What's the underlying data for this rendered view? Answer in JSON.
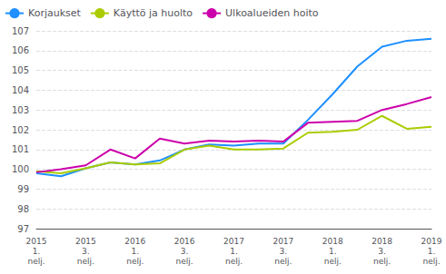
{
  "chart_data": {
    "type": "line",
    "categories": [
      "2015\n1.\nnelj.",
      null,
      "2015\n3.\nnelj.",
      null,
      "2016\n1.\nnelj.",
      null,
      "2016\n3.\nnelj.",
      null,
      "2017\n1.\nnelj.",
      null,
      "2017\n3.\nnelj.",
      null,
      "2018\n1.\nnelj.",
      null,
      "2018\n3.\nnelj.",
      null,
      "2019\n1.\nnelj."
    ],
    "series": [
      {
        "name": "Korjaukset",
        "color": "#1E90FF",
        "values": [
          99.8,
          99.65,
          100.05,
          100.35,
          100.25,
          100.45,
          101.0,
          101.25,
          101.2,
          101.3,
          101.3,
          102.5,
          103.8,
          105.2,
          106.2,
          106.5,
          106.6
        ]
      },
      {
        "name": "Käyttö ja huolto",
        "color": "#AACC00",
        "values": [
          99.9,
          99.8,
          100.05,
          100.35,
          100.25,
          100.3,
          101.0,
          101.2,
          101.0,
          101.0,
          101.05,
          101.85,
          101.9,
          102.0,
          102.7,
          102.05,
          102.15
        ]
      },
      {
        "name": "Ulkoalueiden hoito",
        "color": "#CC00AA",
        "values": [
          99.85,
          100.0,
          100.2,
          101.0,
          100.55,
          101.55,
          101.3,
          101.45,
          101.4,
          101.45,
          101.4,
          102.35,
          102.4,
          102.45,
          103.0,
          103.3,
          103.65
        ]
      }
    ],
    "ylim": [
      97,
      107
    ],
    "yticks": [
      97,
      98,
      99,
      100,
      101,
      102,
      103,
      104,
      105,
      106,
      107
    ],
    "grid": true,
    "legend": "upper left"
  }
}
